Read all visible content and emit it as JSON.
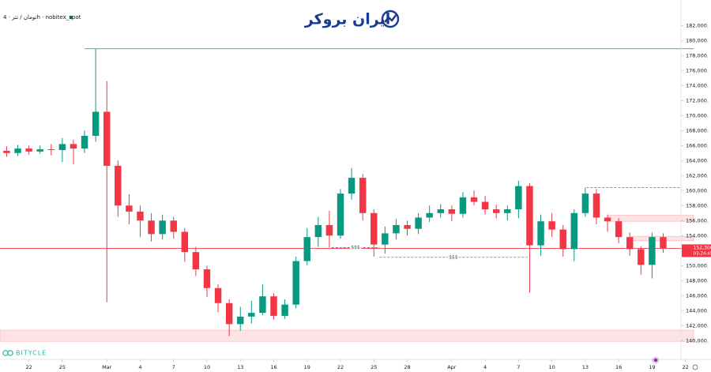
{
  "brand": "ایران بروکر",
  "watermark": "BITYCLE",
  "chart_data": {
    "type": "candlestick",
    "title": "تومان / تتر · 4h · nobitex_spot",
    "up_color": "#089981",
    "down_color": "#f23645",
    "grid": false,
    "x": [
      51,
      52,
      53,
      54,
      55,
      56,
      57,
      58,
      59,
      60,
      61,
      62,
      63,
      64,
      65,
      66,
      67,
      68,
      69,
      70,
      71,
      72,
      73,
      74,
      75,
      76,
      77,
      78,
      79,
      80,
      81,
      82,
      83,
      84,
      85,
      86,
      87,
      88,
      89,
      90,
      91,
      92,
      93,
      94,
      95,
      96,
      97,
      98,
      99,
      100,
      101,
      102,
      103,
      104,
      105,
      106,
      107,
      108,
      109,
      110
    ],
    "open": [
      165300,
      165000,
      165600,
      165200,
      165500,
      165400,
      166200,
      165600,
      167300,
      170500,
      163300,
      158000,
      157200,
      156000,
      154200,
      156000,
      154500,
      151800,
      149500,
      147000,
      145000,
      142200,
      143200,
      143700,
      145900,
      143300,
      144800,
      150600,
      153800,
      155400,
      154000,
      159600,
      161700,
      157000,
      152800,
      154300,
      155400,
      154900,
      156400,
      157000,
      157500,
      156900,
      159100,
      158500,
      157500,
      157000,
      157500,
      160600,
      152700,
      155900,
      154800,
      152200,
      157000,
      159600,
      156400,
      155900,
      153800,
      152200,
      150100,
      153800
    ],
    "high": [
      165900,
      166100,
      166000,
      166000,
      166200,
      167000,
      166800,
      168000,
      178900,
      174600,
      164000,
      159500,
      158000,
      157000,
      156800,
      156500,
      155000,
      152500,
      150000,
      147500,
      145500,
      144500,
      145300,
      147500,
      146300,
      145500,
      151200,
      155000,
      156500,
      157300,
      160200,
      163000,
      162200,
      157500,
      155200,
      156200,
      156000,
      157000,
      158000,
      158200,
      158000,
      159800,
      160000,
      159300,
      158100,
      158000,
      161300,
      161000,
      156800,
      157000,
      155400,
      157500,
      160400,
      160200,
      156800,
      156300,
      154400,
      152600,
      154400,
      154300
    ],
    "low": [
      164500,
      164600,
      164800,
      164900,
      164700,
      163800,
      163500,
      165000,
      166500,
      145100,
      156500,
      155500,
      153800,
      153200,
      153500,
      153600,
      150500,
      148600,
      145800,
      143800,
      140600,
      141300,
      142300,
      143400,
      142800,
      142900,
      144300,
      150000,
      152500,
      152400,
      153600,
      158800,
      156000,
      151200,
      151600,
      153500,
      154000,
      154200,
      155800,
      156400,
      155900,
      156400,
      158000,
      156800,
      156300,
      156000,
      156300,
      146400,
      151300,
      153800,
      151200,
      150600,
      156500,
      155500,
      154500,
      153000,
      151300,
      148800,
      148300,
      151700
    ],
    "close": [
      165000,
      165600,
      165200,
      165500,
      165400,
      166200,
      165600,
      167300,
      170500,
      163300,
      158000,
      157200,
      156000,
      154200,
      156000,
      154500,
      151800,
      149500,
      147000,
      145000,
      142200,
      143200,
      143700,
      145900,
      143300,
      144800,
      150600,
      153800,
      155400,
      154000,
      159600,
      161700,
      157000,
      152800,
      154300,
      155400,
      154900,
      156400,
      157000,
      157500,
      156900,
      159100,
      158500,
      157500,
      157000,
      157500,
      160600,
      152700,
      155900,
      154800,
      152200,
      157000,
      159600,
      156400,
      155900,
      153800,
      152200,
      150100,
      153800,
      152300
    ],
    "xlim": [
      50.4,
      111.6
    ],
    "xticks": [
      {
        "value": 53,
        "label": "22"
      },
      {
        "value": 56,
        "label": "25"
      },
      {
        "value": 60,
        "label": "Mar"
      },
      {
        "value": 63,
        "label": "4"
      },
      {
        "value": 66,
        "label": "7"
      },
      {
        "value": 69,
        "label": "10"
      },
      {
        "value": 72,
        "label": "13"
      },
      {
        "value": 75,
        "label": "16"
      },
      {
        "value": 78,
        "label": "19"
      },
      {
        "value": 81,
        "label": "22"
      },
      {
        "value": 84,
        "label": "25"
      },
      {
        "value": 87,
        "label": "28"
      },
      {
        "value": 91,
        "label": "Apr"
      },
      {
        "value": 94,
        "label": "4"
      },
      {
        "value": 97,
        "label": "7"
      },
      {
        "value": 100,
        "label": "10"
      },
      {
        "value": 103,
        "label": "13"
      },
      {
        "value": 106,
        "label": "16"
      },
      {
        "value": 109,
        "label": "19"
      },
      {
        "value": 112,
        "label": "22"
      }
    ],
    "ylim": [
      137500,
      185400
    ],
    "yticks": [
      {
        "value": 140000,
        "label": "140,000."
      },
      {
        "value": 142000,
        "label": "142,000."
      },
      {
        "value": 144000,
        "label": "144,000."
      },
      {
        "value": 146000,
        "label": "146,000."
      },
      {
        "value": 148000,
        "label": "148,000."
      },
      {
        "value": 150000,
        "label": "150,000."
      },
      {
        "value": 154000,
        "label": "154,000."
      },
      {
        "value": 156000,
        "label": "156,000."
      },
      {
        "value": 158000,
        "label": "158,000."
      },
      {
        "value": 160000,
        "label": "160,000."
      },
      {
        "value": 162000,
        "label": "162,000."
      },
      {
        "value": 164000,
        "label": "164,000."
      },
      {
        "value": 166000,
        "label": "166,000."
      },
      {
        "value": 168000,
        "label": "168,000."
      },
      {
        "value": 170000,
        "label": "170,000."
      },
      {
        "value": 172000,
        "label": "172,000."
      },
      {
        "value": 174000,
        "label": "174,000."
      },
      {
        "value": 176000,
        "label": "176,000."
      },
      {
        "value": 178000,
        "label": "178,000."
      },
      {
        "value": 180000,
        "label": "180,000."
      },
      {
        "value": 182000,
        "label": "182,000."
      }
    ],
    "levels": [
      {
        "value": 178900,
        "x_from": 58,
        "color": "#089981"
      },
      {
        "value": 152300,
        "x_from": 50.4,
        "color": "#f23645",
        "label": "152,300",
        "countdown": "03:24:45"
      }
    ],
    "zones": [
      {
        "from": 139900,
        "to": 141400,
        "x_from": 50.4
      },
      {
        "from": 155900,
        "to": 156700,
        "x_from": 105.1
      },
      {
        "from": 153300,
        "to": 153900,
        "x_from": 107.1
      }
    ],
    "dashed": [
      {
        "value": 160400,
        "x_from": 103.1,
        "x_to": 111.6,
        "color": "#f23645"
      },
      {
        "value": 152400,
        "x_from": 80.2,
        "x_to": 84.5,
        "color": "#555555",
        "label": "$$$"
      },
      {
        "value": 151100,
        "x_from": 84.5,
        "x_to": 97.8,
        "color": "#555555",
        "label": "$$$"
      }
    ]
  }
}
